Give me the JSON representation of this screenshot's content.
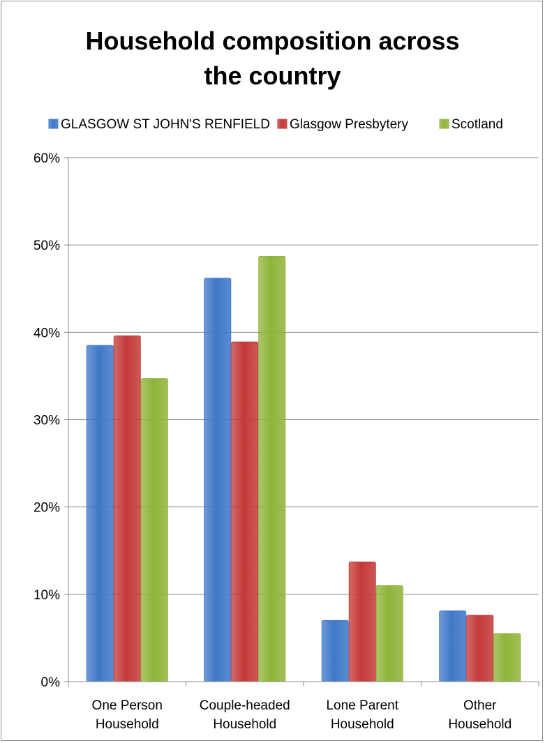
{
  "chart_data": {
    "type": "bar",
    "title_lines": [
      "Household composition across",
      "the country"
    ],
    "categories": [
      [
        "One Person",
        "Household"
      ],
      [
        "Couple-headed",
        "Household"
      ],
      [
        "Lone Parent",
        "Household"
      ],
      [
        "Other",
        "Household"
      ]
    ],
    "series": [
      {
        "name": "GLASGOW ST JOHN'S RENFIELD",
        "color": "#3f78c8",
        "values": [
          38.5,
          46.2,
          7.0,
          8.1
        ]
      },
      {
        "name": "Glasgow Presbytery",
        "color": "#c43a38",
        "values": [
          39.6,
          38.9,
          13.7,
          7.6
        ]
      },
      {
        "name": "Scotland",
        "color": "#8fb43a",
        "values": [
          34.7,
          48.7,
          11.0,
          5.5
        ]
      }
    ],
    "y_ticks": [
      "0%",
      "10%",
      "20%",
      "30%",
      "40%",
      "50%",
      "60%"
    ],
    "ylim": [
      0,
      60
    ],
    "legend_position": "top",
    "grid": true
  }
}
